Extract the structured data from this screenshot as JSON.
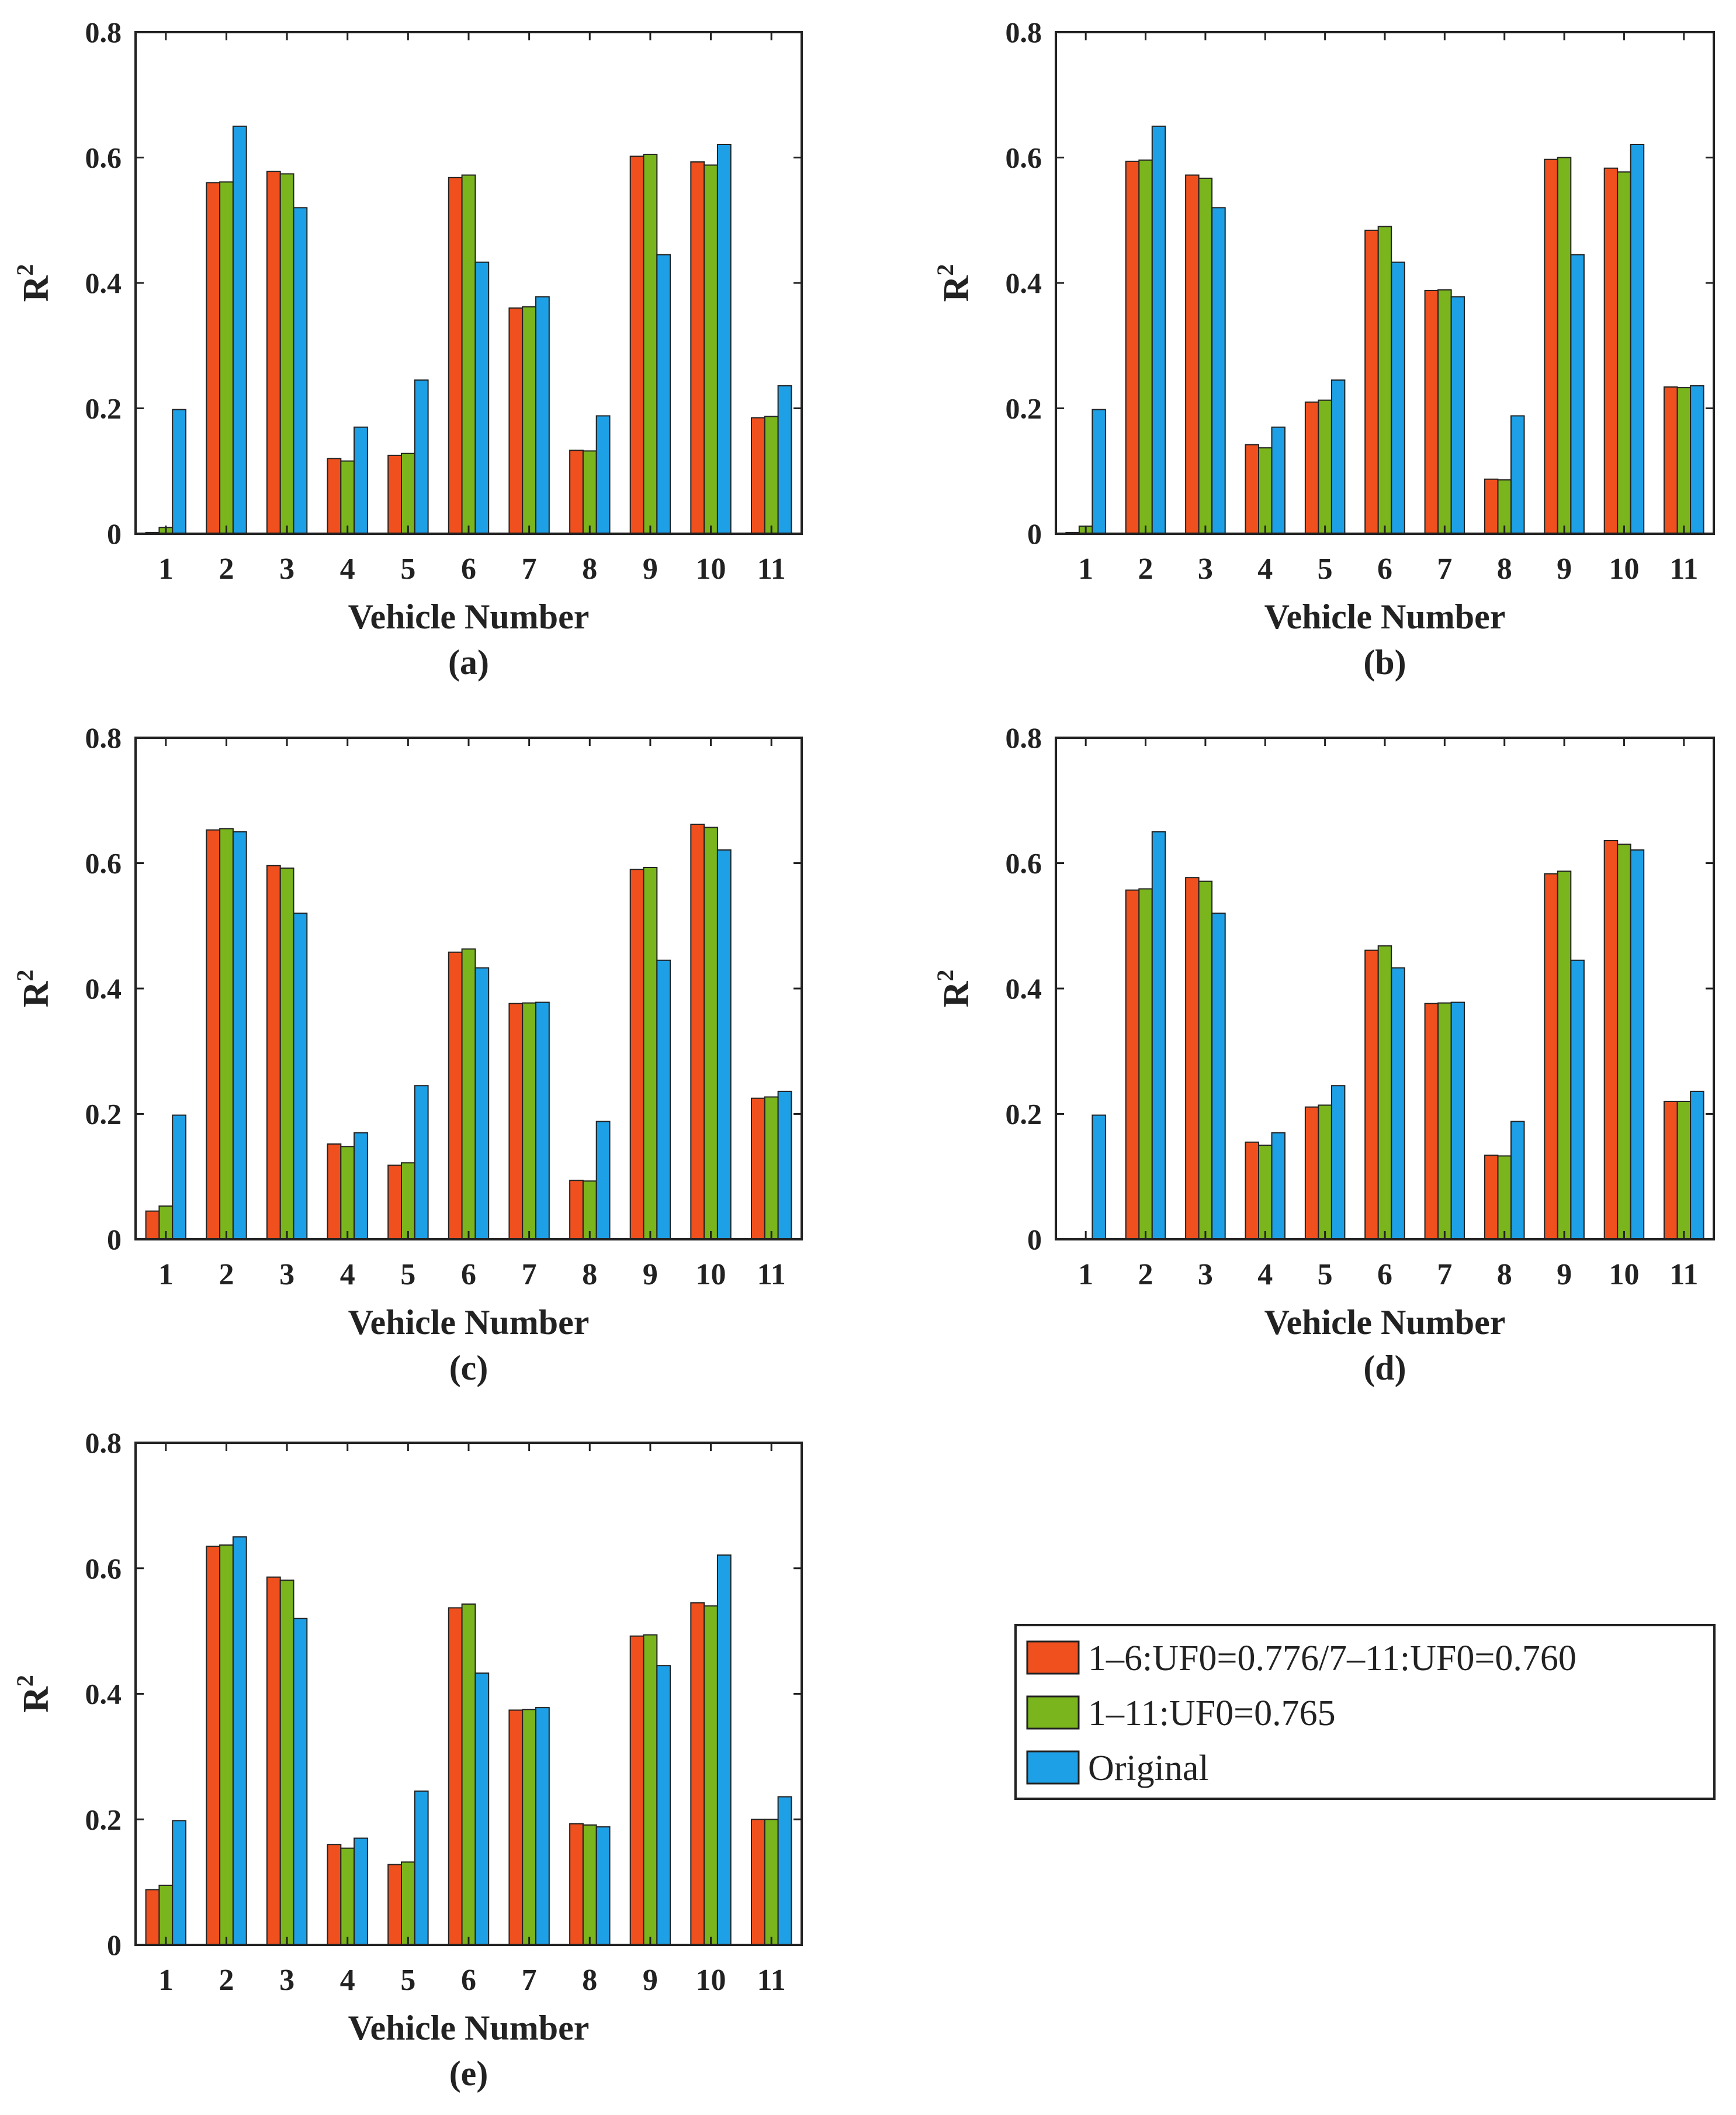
{
  "colors": {
    "series_1": "#f0501e",
    "series_2": "#7ab51d",
    "series_3": "#1ea0e6",
    "axis": "#222222"
  },
  "y_label": "R",
  "y_label_sup": "2",
  "legend": {
    "entries": [
      "1–6:UF0=0.776/7–11:UF0=0.760",
      "1–11:UF0=0.765",
      "Original"
    ]
  },
  "chart_data": [
    {
      "type": "bar",
      "panel": "(a)",
      "categories": [
        "1",
        "2",
        "3",
        "4",
        "5",
        "6",
        "7",
        "8",
        "9",
        "10",
        "11"
      ],
      "xlabel": "Vehicle Number",
      "ylabel": "R2",
      "ylim": [
        0,
        0.8
      ],
      "yticks": [
        "0",
        "0.2",
        "0.4",
        "0.6",
        "0.8"
      ],
      "series": [
        {
          "name": "1–6:UF0=0.776/7–11:UF0=0.760",
          "values": [
            0.002,
            0.56,
            0.578,
            0.12,
            0.125,
            0.568,
            0.36,
            0.133,
            0.602,
            0.593,
            0.185
          ]
        },
        {
          "name": "1–11:UF0=0.765",
          "values": [
            0.01,
            0.561,
            0.574,
            0.116,
            0.128,
            0.572,
            0.362,
            0.132,
            0.605,
            0.588,
            0.187
          ]
        },
        {
          "name": "Original",
          "values": [
            0.198,
            0.65,
            0.52,
            0.17,
            0.245,
            0.433,
            0.378,
            0.188,
            0.445,
            0.621,
            0.236
          ]
        }
      ]
    },
    {
      "type": "bar",
      "panel": "(b)",
      "categories": [
        "1",
        "2",
        "3",
        "4",
        "5",
        "6",
        "7",
        "8",
        "9",
        "10",
        "11"
      ],
      "xlabel": "Vehicle Number",
      "ylabel": "R2",
      "ylim": [
        0,
        0.8
      ],
      "yticks": [
        "0",
        "0.2",
        "0.4",
        "0.6",
        "0.8"
      ],
      "series": [
        {
          "name": "1–6:UF0=0.776/7–11:UF0=0.760",
          "values": [
            0.002,
            0.594,
            0.572,
            0.142,
            0.21,
            0.484,
            0.388,
            0.087,
            0.597,
            0.583,
            0.234
          ]
        },
        {
          "name": "1–11:UF0=0.765",
          "values": [
            0.012,
            0.596,
            0.567,
            0.137,
            0.213,
            0.49,
            0.389,
            0.086,
            0.6,
            0.577,
            0.233
          ]
        },
        {
          "name": "Original",
          "values": [
            0.198,
            0.65,
            0.52,
            0.17,
            0.245,
            0.433,
            0.378,
            0.188,
            0.445,
            0.621,
            0.236
          ]
        }
      ]
    },
    {
      "type": "bar",
      "panel": "(c)",
      "categories": [
        "1",
        "2",
        "3",
        "4",
        "5",
        "6",
        "7",
        "8",
        "9",
        "10",
        "11"
      ],
      "xlabel": "Vehicle Number",
      "ylabel": "R2",
      "ylim": [
        0,
        0.8
      ],
      "yticks": [
        "0",
        "0.2",
        "0.4",
        "0.6",
        "0.8"
      ],
      "series": [
        {
          "name": "1–6:UF0=0.776/7–11:UF0=0.760",
          "values": [
            0.045,
            0.653,
            0.596,
            0.152,
            0.118,
            0.458,
            0.376,
            0.094,
            0.59,
            0.662,
            0.225
          ]
        },
        {
          "name": "1–11:UF0=0.765",
          "values": [
            0.053,
            0.655,
            0.592,
            0.148,
            0.122,
            0.463,
            0.377,
            0.093,
            0.593,
            0.657,
            0.227
          ]
        },
        {
          "name": "Original",
          "values": [
            0.198,
            0.65,
            0.52,
            0.17,
            0.245,
            0.433,
            0.378,
            0.188,
            0.445,
            0.621,
            0.236
          ]
        }
      ]
    },
    {
      "type": "bar",
      "panel": "(d)",
      "categories": [
        "1",
        "2",
        "3",
        "4",
        "5",
        "6",
        "7",
        "8",
        "9",
        "10",
        "11"
      ],
      "xlabel": "Vehicle Number",
      "ylabel": "R2",
      "ylim": [
        0,
        0.8
      ],
      "yticks": [
        "0",
        "0.2",
        "0.4",
        "0.6",
        "0.8"
      ],
      "series": [
        {
          "name": "1–6:UF0=0.776/7–11:UF0=0.760",
          "values": [
            0.001,
            0.557,
            0.577,
            0.155,
            0.211,
            0.461,
            0.376,
            0.134,
            0.583,
            0.636,
            0.22
          ]
        },
        {
          "name": "1–11:UF0=0.765",
          "values": [
            0.001,
            0.559,
            0.571,
            0.15,
            0.214,
            0.468,
            0.377,
            0.133,
            0.587,
            0.63,
            0.22
          ]
        },
        {
          "name": "Original",
          "values": [
            0.198,
            0.65,
            0.52,
            0.17,
            0.245,
            0.433,
            0.378,
            0.188,
            0.445,
            0.621,
            0.236
          ]
        }
      ]
    },
    {
      "type": "bar",
      "panel": "(e)",
      "categories": [
        "1",
        "2",
        "3",
        "4",
        "5",
        "6",
        "7",
        "8",
        "9",
        "10",
        "11"
      ],
      "xlabel": "Vehicle Number",
      "ylabel": "R2",
      "ylim": [
        0,
        0.8
      ],
      "yticks": [
        "0",
        "0.2",
        "0.4",
        "0.6",
        "0.8"
      ],
      "series": [
        {
          "name": "1–6:UF0=0.776/7–11:UF0=0.760",
          "values": [
            0.088,
            0.635,
            0.586,
            0.16,
            0.128,
            0.537,
            0.374,
            0.193,
            0.492,
            0.545,
            0.2
          ]
        },
        {
          "name": "1–11:UF0=0.765",
          "values": [
            0.095,
            0.637,
            0.581,
            0.154,
            0.132,
            0.543,
            0.375,
            0.191,
            0.494,
            0.54,
            0.2
          ]
        },
        {
          "name": "Original",
          "values": [
            0.198,
            0.65,
            0.52,
            0.17,
            0.245,
            0.433,
            0.378,
            0.188,
            0.445,
            0.621,
            0.236
          ]
        }
      ]
    }
  ]
}
